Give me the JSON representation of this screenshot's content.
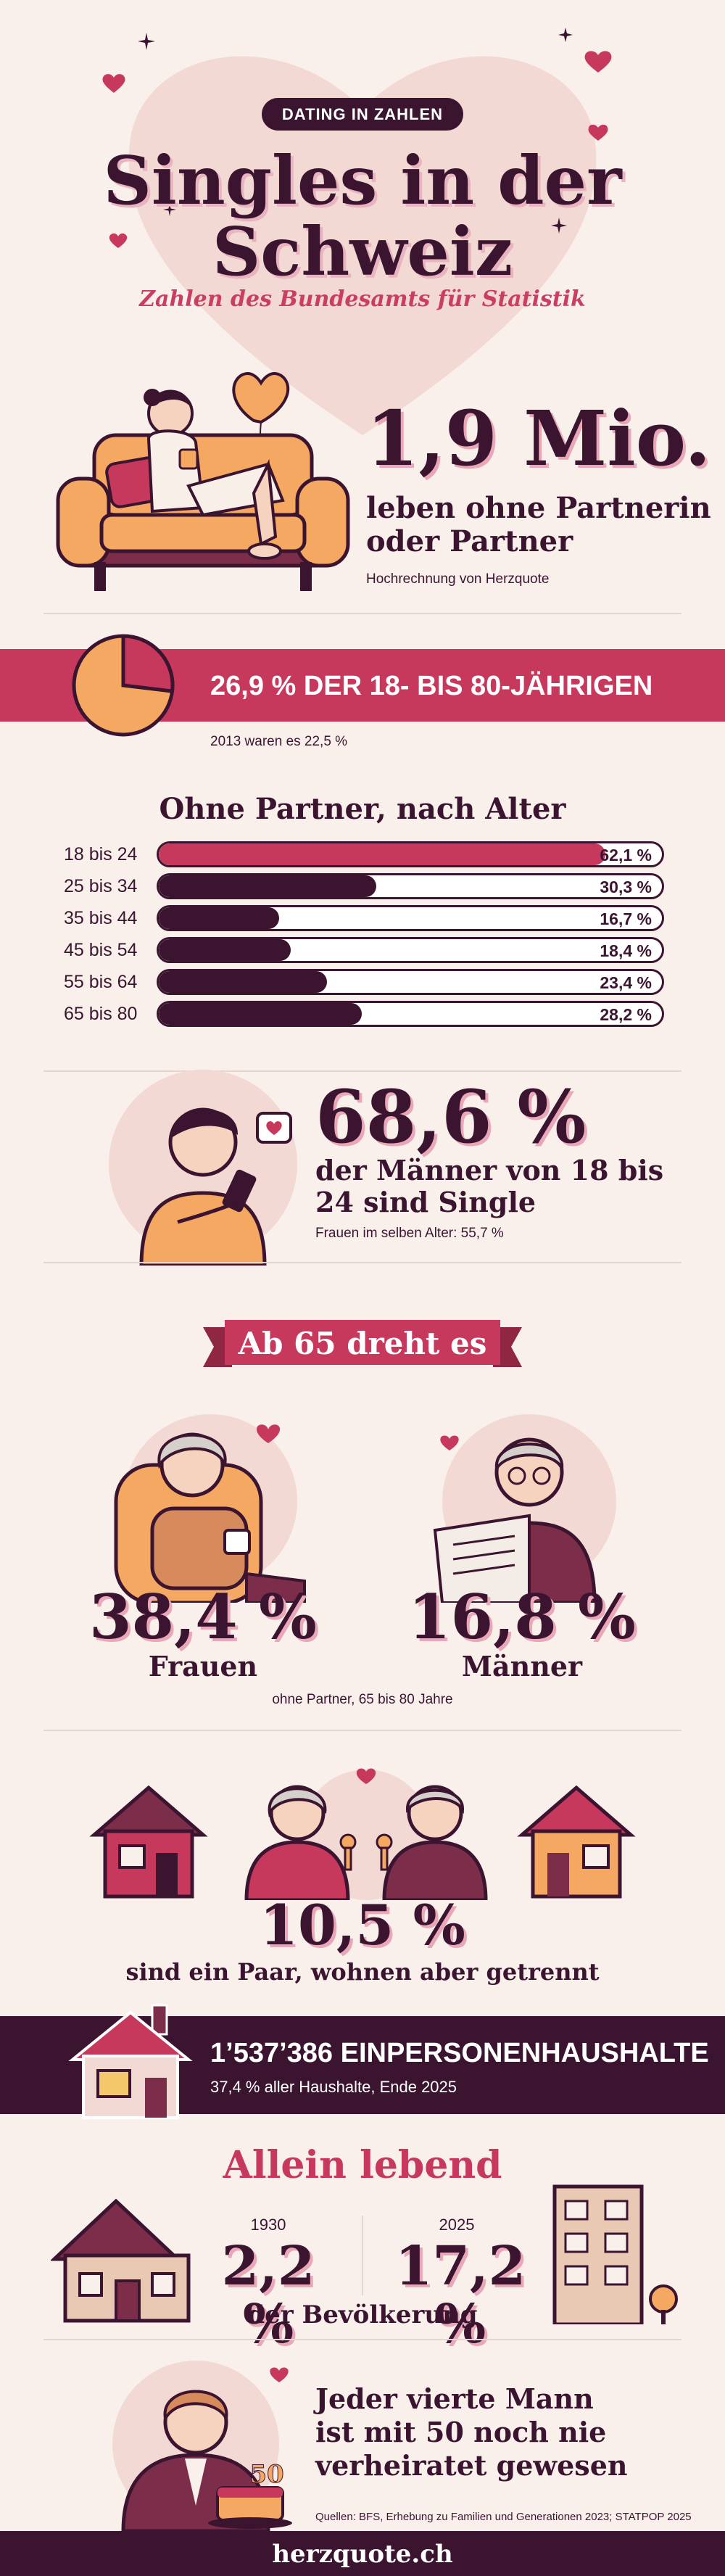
{
  "header": {
    "pill": "DATING IN ZAHLEN",
    "title_line1": "Singles in der",
    "title_line2": "Schweiz",
    "subtitle": "Zahlen des Bundesamts für Statistik"
  },
  "hero": {
    "value": "1,9 Mio.",
    "line1": "leben ohne Partnerin",
    "line2": "oder Partner",
    "note": "Hochrechnung von Herzquote"
  },
  "share": {
    "headline": "26,9 % DER 18- BIS 80-JÄHRIGEN",
    "note": "2013 waren es 22,5 %",
    "fraction": 0.269
  },
  "age_chart": {
    "title": "Ohne Partner, nach Alter",
    "rows": [
      {
        "label": "18 bis 24",
        "value": 62.1,
        "text": "62,1 %",
        "highlight": true
      },
      {
        "label": "25 bis 34",
        "value": 30.3,
        "text": "30,3 %",
        "highlight": false
      },
      {
        "label": "35 bis 44",
        "value": 16.7,
        "text": "16,7 %",
        "highlight": false
      },
      {
        "label": "45 bis 54",
        "value": 18.4,
        "text": "18,4 %",
        "highlight": false
      },
      {
        "label": "55 bis 64",
        "value": 23.4,
        "text": "23,4 %",
        "highlight": false
      },
      {
        "label": "65 bis 80",
        "value": 28.2,
        "text": "28,2 %",
        "highlight": false
      }
    ]
  },
  "men_young": {
    "value": "68,6 %",
    "line1": "der Männer von 18 bis",
    "line2": "24 sind Single",
    "note": "Frauen im selben Alter: 55,7 %"
  },
  "senior": {
    "ribbon": "Ab 65 dreht es",
    "women_value": "38,4 %",
    "women_label": "Frauen",
    "men_value": "16,8 %",
    "men_label": "Männer",
    "note": "ohne Partner, 65 bis 80 Jahre"
  },
  "apart": {
    "value": "10,5 %",
    "label": "sind ein Paar, wohnen aber getrennt"
  },
  "households": {
    "headline": "1’537’386 EINPERSONENHAUSHALTE",
    "note": "37,4 % aller Haushalte, Ende 2025"
  },
  "alone": {
    "title": "Allein lebend",
    "year1": "1930",
    "value1": "2,2 %",
    "year2": "2025",
    "value2": "17,2 %",
    "label": "der Bevölkerung"
  },
  "fifty": {
    "line1": "Jeder vierte Mann",
    "line2": "ist mit 50 noch nie",
    "line3": "verheiratet gewesen",
    "cake_number": "50",
    "sources": "Quellen: BFS, Erhebung zu Familien und Generationen 2023; STATPOP 2025"
  },
  "footer": {
    "site": "herzquote.ch"
  },
  "colors": {
    "accent": "#c6395d",
    "dark": "#3b1530",
    "background": "#f9f0ec",
    "orange": "#f4a862"
  }
}
